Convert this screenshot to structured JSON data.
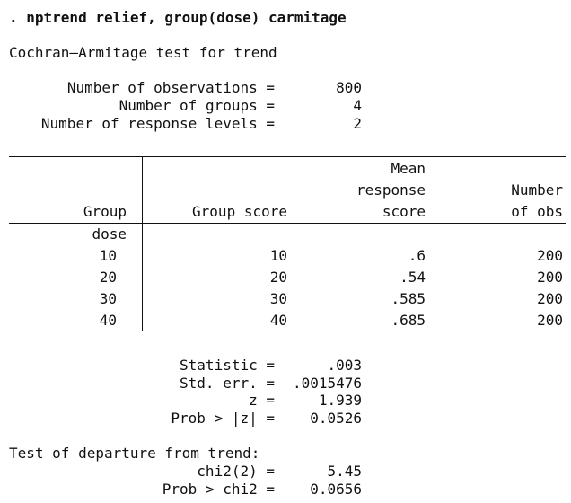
{
  "command": ". nptrend relief, group(dose) carmitage",
  "test_title": "Cochran–Armitage test for trend",
  "summary": [
    {
      "label": "Number of observations =",
      "value": "800"
    },
    {
      "label": "Number of groups =",
      "value": "4"
    },
    {
      "label": "Number of response levels =",
      "value": "2"
    }
  ],
  "table": {
    "headers": {
      "group": "Group",
      "group_score": "Group score",
      "mean_line1": "Mean",
      "mean_line2": "response",
      "mean_line3": "score",
      "nobs_line1": "Number",
      "nobs_line2": "of obs"
    },
    "group_var": "dose",
    "rows": [
      {
        "group": "10",
        "score": "10",
        "mean": ".6",
        "nobs": "200"
      },
      {
        "group": "20",
        "score": "20",
        "mean": ".54",
        "nobs": "200"
      },
      {
        "group": "30",
        "score": "30",
        "mean": ".585",
        "nobs": "200"
      },
      {
        "group": "40",
        "score": "40",
        "mean": ".685",
        "nobs": "200"
      }
    ]
  },
  "stats": [
    {
      "label": "Statistic =",
      "value": ".003"
    },
    {
      "label": "Std. err. =",
      "value": ".0015476"
    },
    {
      "label": "z =",
      "value": "1.939"
    },
    {
      "label": "Prob > |z| =",
      "value": "0.0526"
    }
  ],
  "departure_title": "Test of departure from trend:",
  "departure": [
    {
      "label": "chi2(2) =",
      "value": "5.45"
    },
    {
      "label": "Prob > chi2 =",
      "value": "0.0656"
    }
  ]
}
